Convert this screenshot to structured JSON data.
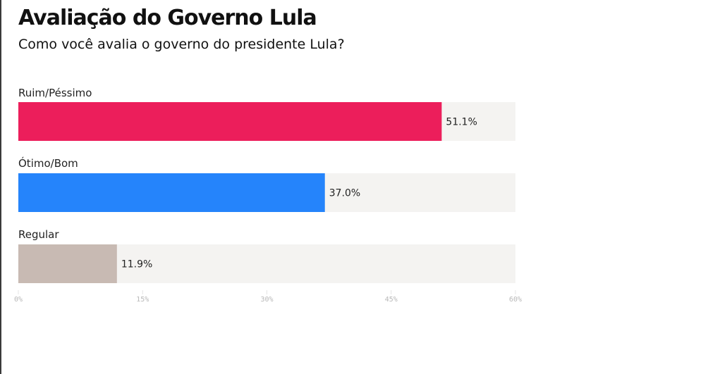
{
  "chart_data": {
    "type": "bar",
    "orientation": "horizontal",
    "title": "Avaliação do Governo Lula",
    "subtitle": "Como você avalia o governo do presidente Lula?",
    "categories": [
      "Ruim/Péssimo",
      "Ótimo/Bom",
      "Regular"
    ],
    "values": [
      51.1,
      37.0,
      11.9
    ],
    "value_labels": [
      "51.1%",
      "37.0%",
      "11.9%"
    ],
    "colors": [
      "#ec1e5b",
      "#2584fb",
      "#c8bab3"
    ],
    "track_color": "#f4f3f1",
    "xlim": [
      0,
      60
    ],
    "xticks": [
      0,
      15,
      30,
      45,
      60
    ],
    "xtick_labels": [
      "0%",
      "15%",
      "30%",
      "45%",
      "60%"
    ],
    "grid": true,
    "legend": "none"
  }
}
